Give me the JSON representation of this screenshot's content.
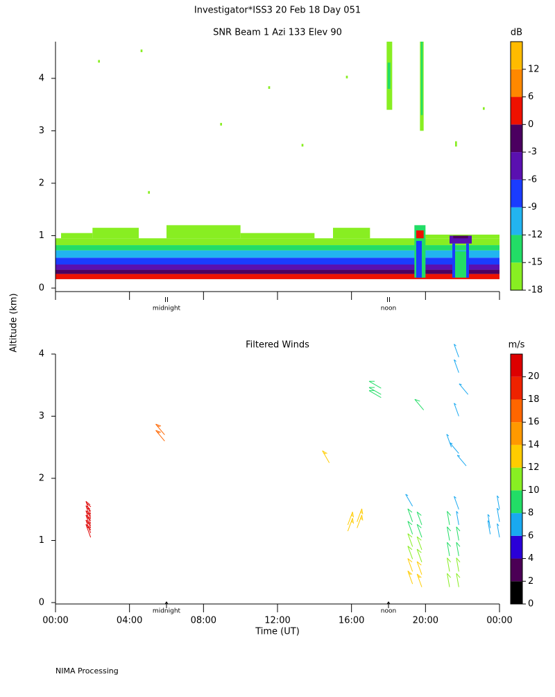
{
  "title": "Investigator*ISS3  20 Feb 18 Day 051",
  "y_axis_label": "Altitude (km)",
  "footer": "NIMA Processing",
  "chart_data": [
    {
      "type": "heatmap",
      "title": "SNR Beam 1 Azi 133 Elev 90",
      "xlim": [
        0,
        24
      ],
      "xticks": [
        0,
        4,
        8,
        12,
        16,
        20,
        24
      ],
      "ylim": [
        0,
        4.7
      ],
      "yticks": [
        0,
        1,
        2,
        3,
        4
      ],
      "time_markers": [
        {
          "value": 6,
          "label": "midnight"
        },
        {
          "value": 18,
          "label": "noon"
        }
      ],
      "colorbar": {
        "label": "dB",
        "ticks": [
          -18,
          -15,
          -12,
          -9,
          -6,
          -3,
          0,
          6,
          12
        ],
        "colors": [
          "#88ee22",
          "#22dd66",
          "#22b4f0",
          "#1a3cff",
          "#5a10b0",
          "#4b0060",
          "#ee1100",
          "#ff8800",
          "#ffbb00"
        ]
      },
      "cells": [
        [
          0,
          24,
          0.17,
          0.27,
          3
        ],
        [
          0,
          24,
          0.27,
          0.35,
          -2
        ],
        [
          0,
          24,
          0.35,
          0.45,
          -5
        ],
        [
          0,
          24,
          0.45,
          0.58,
          -8
        ],
        [
          0,
          24,
          0.58,
          0.72,
          -11
        ],
        [
          0,
          24,
          0.72,
          0.82,
          -14
        ],
        [
          0,
          24,
          0.82,
          0.95,
          -17
        ],
        [
          0.3,
          2,
          0.95,
          1.05,
          -17
        ],
        [
          2,
          4.5,
          0.95,
          1.15,
          -17
        ],
        [
          6,
          10,
          0.95,
          1.2,
          -17
        ],
        [
          10,
          14,
          0.95,
          1.05,
          -17
        ],
        [
          15,
          17,
          0.95,
          1.15,
          -17
        ],
        [
          20,
          24,
          0.95,
          1.02,
          -17
        ],
        [
          19.4,
          20.0,
          0.2,
          1.2,
          -14
        ],
        [
          19.5,
          19.8,
          0.2,
          0.9,
          -8
        ],
        [
          19.5,
          19.9,
          0.95,
          1.1,
          3
        ],
        [
          19.7,
          19.9,
          3.0,
          4.7,
          -16
        ],
        [
          19.75,
          19.85,
          3.3,
          4.7,
          -13
        ],
        [
          17.9,
          18.2,
          3.4,
          4.7,
          -16
        ],
        [
          17.95,
          18.1,
          3.8,
          4.3,
          -13
        ],
        [
          21.5,
          22.3,
          0.2,
          0.7,
          -14
        ],
        [
          21.3,
          22.5,
          0.85,
          1.0,
          -5
        ],
        [
          21.5,
          22.3,
          0.95,
          1.0,
          -1
        ],
        [
          21.45,
          21.6,
          0.2,
          0.85,
          -8
        ],
        [
          22.2,
          22.35,
          0.2,
          0.85,
          -8
        ],
        [
          2.3,
          2.4,
          4.3,
          4.35,
          -17
        ],
        [
          4.6,
          4.7,
          4.5,
          4.55,
          -17
        ],
        [
          11.5,
          11.6,
          3.8,
          3.85,
          -17
        ],
        [
          15.7,
          15.8,
          4.0,
          4.05,
          -17
        ],
        [
          21.6,
          21.7,
          2.7,
          2.8,
          -17
        ],
        [
          5.0,
          5.1,
          1.8,
          1.85,
          -17
        ],
        [
          8.9,
          9.0,
          3.1,
          3.15,
          -17
        ],
        [
          13.3,
          13.4,
          2.7,
          2.75,
          -17
        ],
        [
          23.1,
          23.2,
          3.4,
          3.45,
          -17
        ]
      ]
    },
    {
      "type": "barbs",
      "title": "Filtered Winds",
      "x_label": "Time (UT)",
      "xlim": [
        0,
        24
      ],
      "xticks": [
        {
          "value": 0,
          "label": "00:00"
        },
        {
          "value": 4,
          "label": "04:00"
        },
        {
          "value": 8,
          "label": "08:00"
        },
        {
          "value": 12,
          "label": "12:00"
        },
        {
          "value": 16,
          "label": "16:00"
        },
        {
          "value": 20,
          "label": "20:00"
        },
        {
          "value": 24,
          "label": "00:00"
        }
      ],
      "ylim": [
        0,
        4
      ],
      "yticks": [
        0,
        1,
        2,
        3,
        4
      ],
      "time_markers": [
        {
          "value": 6,
          "label": "midnight"
        },
        {
          "value": 18,
          "label": "noon"
        }
      ],
      "colorbar": {
        "label": "m/s",
        "ticks": [
          0,
          2,
          4,
          6,
          8,
          10,
          12,
          14,
          16,
          18,
          20
        ],
        "colors": [
          "#000000",
          "#4b0055",
          "#2a00d8",
          "#19a9f0",
          "#22dd66",
          "#88ee22",
          "#ffcc00",
          "#ff9900",
          "#ff6600",
          "#ee2200",
          "#dd0000"
        ]
      },
      "time": [
        1.9,
        1.9,
        1.9,
        1.9,
        1.9,
        1.9,
        5.9,
        5.9,
        14.8,
        15.8,
        15.8,
        16.3,
        16.3,
        17.6,
        17.6,
        17.6,
        19.3,
        19.3,
        19.3,
        19.3,
        19.3,
        19.3,
        19.3,
        19.8,
        19.8,
        19.8,
        19.8,
        19.8,
        19.8,
        19.9,
        21.3,
        21.3,
        21.3,
        21.3,
        21.3,
        21.8,
        21.8,
        21.8,
        21.8,
        21.8,
        21.8,
        21.4,
        21.8,
        22.2,
        21.8,
        22.3,
        21.8,
        21.8,
        23.5,
        23.5,
        24,
        24,
        24
      ],
      "altitude": [
        1.05,
        1.12,
        1.2,
        1.27,
        1.35,
        1.42,
        2.6,
        2.7,
        2.25,
        1.15,
        1.25,
        1.2,
        1.3,
        3.3,
        3.35,
        3.45,
        0.3,
        0.5,
        0.7,
        0.9,
        1.1,
        1.3,
        1.55,
        0.25,
        0.45,
        0.65,
        0.85,
        1.05,
        1.25,
        3.1,
        0.25,
        0.5,
        0.75,
        1.0,
        1.25,
        0.25,
        0.5,
        0.75,
        1.0,
        1.25,
        1.5,
        2.5,
        2.4,
        2.2,
        3.0,
        3.35,
        3.7,
        3.95,
        1.1,
        1.2,
        1.05,
        1.3,
        1.5
      ],
      "speed": [
        20,
        21,
        20,
        21,
        20,
        20,
        17,
        16,
        13,
        13,
        13,
        13,
        13,
        9,
        9,
        9,
        13,
        12,
        11,
        10,
        9,
        8,
        7,
        13,
        12,
        11,
        10,
        9,
        8,
        9,
        11,
        10,
        9,
        8,
        9,
        11,
        10,
        9,
        8,
        7,
        7,
        7,
        6,
        6,
        7,
        7,
        7,
        7,
        6,
        6,
        6,
        6,
        6
      ],
      "direction": [
        340,
        340,
        340,
        340,
        340,
        340,
        320,
        320,
        330,
        20,
        20,
        20,
        20,
        300,
        300,
        300,
        340,
        340,
        340,
        340,
        340,
        340,
        330,
        340,
        340,
        340,
        340,
        340,
        340,
        320,
        350,
        350,
        350,
        350,
        350,
        350,
        350,
        350,
        350,
        350,
        340,
        340,
        320,
        320,
        340,
        320,
        340,
        340,
        350,
        350,
        350,
        350,
        350
      ]
    }
  ]
}
